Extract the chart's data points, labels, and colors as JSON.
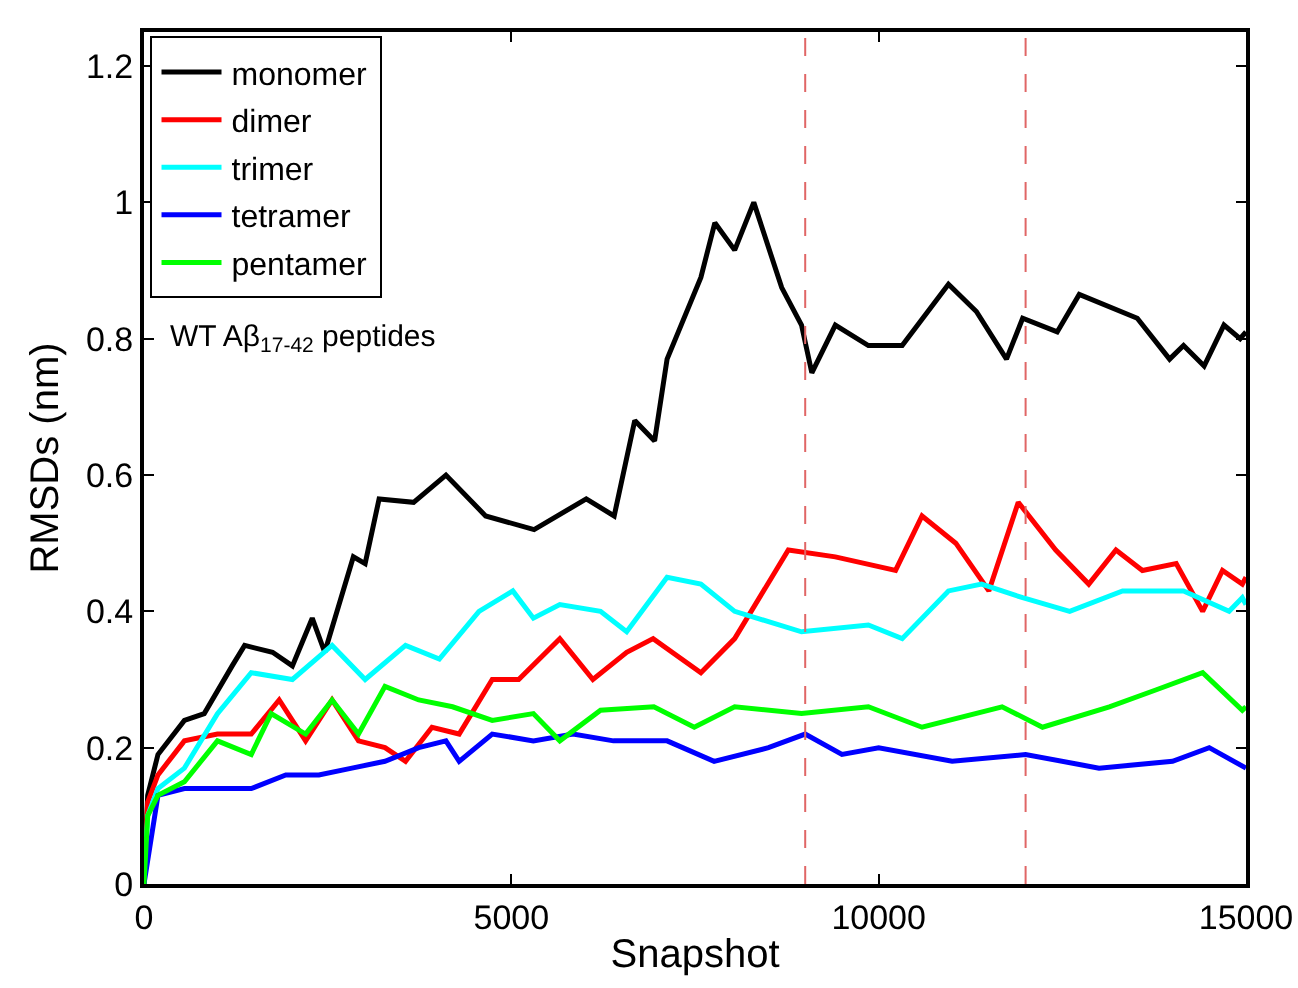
{
  "chart_data": {
    "type": "line",
    "xlabel": "Snapshot",
    "ylabel": "RMSDs (nm)",
    "annotations": [
      "WT Aβ$_{17-42}$ peptides"
    ],
    "xlim": [
      0,
      15000
    ],
    "xticks": [
      0,
      5000,
      10000,
      15000
    ],
    "ylim": [
      0,
      1.25
    ],
    "yticks": [
      0,
      0.2,
      0.4,
      0.6,
      0.8,
      1,
      1.2
    ],
    "grid": false,
    "legend": "top left",
    "marker": "none",
    "line_style": "solid",
    "ref_lines": [
      {
        "axis": "x",
        "value": 9000,
        "color": "#e06666",
        "line_style": "dashed"
      },
      {
        "axis": "x",
        "value": 12000,
        "color": "#e06666",
        "line_style": "dashed"
      }
    ],
    "series": [
      {
        "name": "monomer",
        "color": "#000000",
        "x": [
          0,
          50,
          190,
          550,
          820,
          1200,
          1370,
          1750,
          2020,
          2290,
          2460,
          2850,
          3010,
          3200,
          3670,
          4110,
          4650,
          5310,
          6020,
          6400,
          6680,
          6950,
          7120,
          7580,
          7770,
          8040,
          8300,
          8680,
          8950,
          9090,
          9410,
          9860,
          10320,
          10950,
          11330,
          11740,
          11960,
          12430,
          12730,
          13520,
          13960,
          14150,
          14430,
          14700,
          14920,
          15000
        ],
        "values": [
          0,
          0.13,
          0.19,
          0.24,
          0.25,
          0.32,
          0.35,
          0.34,
          0.32,
          0.39,
          0.34,
          0.48,
          0.47,
          0.565,
          0.56,
          0.6,
          0.54,
          0.52,
          0.565,
          0.54,
          0.68,
          0.65,
          0.77,
          0.89,
          0.97,
          0.93,
          1.0,
          0.875,
          0.82,
          0.75,
          0.82,
          0.79,
          0.79,
          0.88,
          0.84,
          0.77,
          0.83,
          0.81,
          0.865,
          0.83,
          0.77,
          0.79,
          0.76,
          0.82,
          0.8,
          0.81
        ]
      },
      {
        "name": "dimer",
        "color": "#ff0000",
        "x": [
          0,
          50,
          190,
          550,
          1000,
          1460,
          1840,
          2200,
          2560,
          2920,
          3280,
          3560,
          3920,
          4290,
          4740,
          5100,
          5660,
          6110,
          6570,
          6930,
          7580,
          8040,
          8770,
          9410,
          10230,
          10590,
          11050,
          11500,
          11900,
          12410,
          12860,
          13230,
          13590,
          14050,
          14410,
          14680,
          14950,
          15000
        ],
        "values": [
          0,
          0.12,
          0.16,
          0.21,
          0.22,
          0.22,
          0.27,
          0.21,
          0.27,
          0.21,
          0.2,
          0.18,
          0.23,
          0.22,
          0.3,
          0.3,
          0.36,
          0.3,
          0.34,
          0.36,
          0.31,
          0.36,
          0.49,
          0.48,
          0.46,
          0.54,
          0.5,
          0.43,
          0.56,
          0.49,
          0.44,
          0.49,
          0.46,
          0.47,
          0.4,
          0.46,
          0.44,
          0.45
        ]
      },
      {
        "name": "trimer",
        "color": "#00ffff",
        "x": [
          0,
          50,
          190,
          550,
          1000,
          1460,
          2020,
          2560,
          3010,
          3560,
          4020,
          4560,
          5020,
          5300,
          5660,
          6214,
          6570,
          7120,
          7580,
          8040,
          8950,
          9860,
          10320,
          10950,
          11400,
          11960,
          12600,
          13320,
          14150,
          14770,
          14950,
          15000
        ],
        "values": [
          0,
          0.1,
          0.14,
          0.17,
          0.25,
          0.31,
          0.3,
          0.35,
          0.3,
          0.35,
          0.33,
          0.4,
          0.43,
          0.39,
          0.41,
          0.4,
          0.37,
          0.45,
          0.44,
          0.4,
          0.37,
          0.38,
          0.36,
          0.43,
          0.44,
          0.42,
          0.4,
          0.43,
          0.43,
          0.4,
          0.42,
          0.41
        ]
      },
      {
        "name": "tetramer",
        "color": "#0000ff",
        "x": [
          0,
          190,
          550,
          1000,
          1460,
          1930,
          2380,
          2830,
          3280,
          3740,
          4110,
          4290,
          4740,
          5300,
          5840,
          6390,
          7120,
          7760,
          8500,
          9000,
          9500,
          10000,
          11000,
          12000,
          13000,
          14000,
          14500,
          15000
        ],
        "values": [
          0,
          0.13,
          0.14,
          0.14,
          0.14,
          0.16,
          0.16,
          0.17,
          0.18,
          0.2,
          0.21,
          0.18,
          0.22,
          0.21,
          0.22,
          0.21,
          0.21,
          0.18,
          0.2,
          0.22,
          0.19,
          0.2,
          0.18,
          0.19,
          0.17,
          0.18,
          0.2,
          0.17
        ]
      },
      {
        "name": "pentamer",
        "color": "#00ff00",
        "x": [
          0,
          50,
          190,
          550,
          1000,
          1460,
          1730,
          2200,
          2560,
          2920,
          3280,
          3740,
          4200,
          4740,
          5300,
          5660,
          6214,
          6940,
          7490,
          8040,
          8950,
          9860,
          10590,
          11680,
          12230,
          13140,
          13780,
          14410,
          14950,
          15000
        ],
        "values": [
          0,
          0.1,
          0.13,
          0.15,
          0.21,
          0.19,
          0.25,
          0.22,
          0.27,
          0.22,
          0.29,
          0.27,
          0.26,
          0.24,
          0.25,
          0.21,
          0.255,
          0.26,
          0.23,
          0.26,
          0.25,
          0.26,
          0.23,
          0.26,
          0.23,
          0.26,
          0.285,
          0.31,
          0.255,
          0.26
        ]
      }
    ]
  }
}
